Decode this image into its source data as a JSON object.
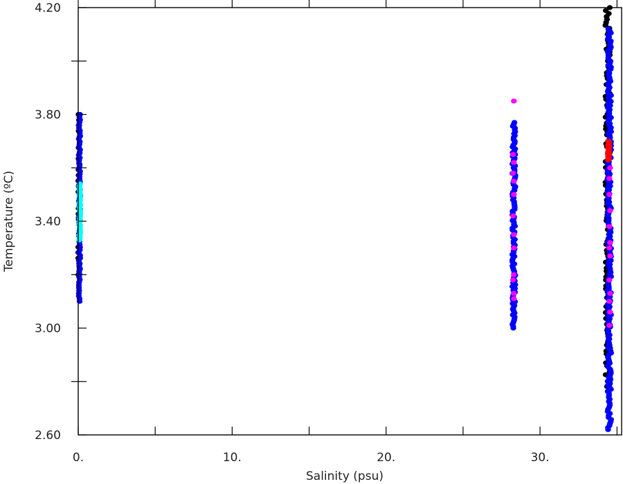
{
  "chart_data": {
    "type": "scatter",
    "xlabel": "Salinity (psu)",
    "ylabel": "Temperature (ºC)",
    "xlim": [
      0,
      35.3
    ],
    "ylim": [
      2.6,
      4.2
    ],
    "x_ticks": [
      0,
      5,
      10,
      15,
      20,
      25,
      30,
      35
    ],
    "x_tick_labels": [
      "0.",
      "",
      "10.",
      "",
      "20.",
      "",
      "30.",
      ""
    ],
    "y_ticks": [
      2.6,
      2.8,
      3.0,
      3.2,
      3.4,
      3.6,
      3.8,
      4.0,
      4.2
    ],
    "y_tick_labels": [
      "2.60",
      "",
      "3.00",
      "",
      "3.40",
      "",
      "3.80",
      "",
      "4.20"
    ],
    "grid": false,
    "legend": "none",
    "series": [
      {
        "color": "#000000",
        "clusters": [
          {
            "x": 0.05,
            "xspread": 0.05,
            "y": [
              3.2,
              3.8
            ],
            "count": 30
          },
          {
            "x": 34.4,
            "xspread": 0.15,
            "y": [
              2.77,
              4.2
            ],
            "count": 130
          }
        ]
      },
      {
        "color": "#0000ff",
        "clusters": [
          {
            "x": 0.08,
            "xspread": 0.05,
            "y": [
              3.1,
              3.8
            ],
            "count": 70
          },
          {
            "x": 28.3,
            "xspread": 0.1,
            "y": [
              3.0,
              3.77
            ],
            "count": 110
          },
          {
            "x": 34.5,
            "xspread": 0.12,
            "y": [
              2.62,
              4.12
            ],
            "count": 200
          }
        ]
      },
      {
        "color": "#00ffff",
        "clusters": [
          {
            "x": 0.1,
            "xspread": 0.03,
            "y": [
              3.33,
              3.54
            ],
            "count": 25
          }
        ]
      },
      {
        "color": "#ff00ff",
        "points": [
          [
            28.3,
            3.85
          ],
          [
            28.25,
            3.65
          ],
          [
            28.3,
            3.62
          ],
          [
            28.25,
            3.58
          ],
          [
            28.3,
            3.55
          ],
          [
            28.3,
            3.5
          ],
          [
            28.25,
            3.42
          ],
          [
            28.3,
            3.35
          ],
          [
            28.3,
            3.3
          ],
          [
            28.3,
            3.2
          ],
          [
            28.25,
            3.18
          ],
          [
            28.3,
            3.13
          ],
          [
            28.3,
            3.11
          ],
          [
            34.5,
            3.56
          ],
          [
            34.5,
            3.5
          ],
          [
            34.55,
            3.44
          ],
          [
            34.5,
            3.38
          ],
          [
            34.55,
            3.32
          ],
          [
            34.5,
            3.3
          ],
          [
            34.55,
            3.27
          ],
          [
            34.5,
            3.18
          ],
          [
            34.55,
            3.13
          ],
          [
            34.5,
            3.1
          ],
          [
            34.55,
            3.06
          ],
          [
            34.5,
            3.01
          ],
          [
            34.55,
            3.6
          ]
        ]
      },
      {
        "color": "#ff0000",
        "clusters": [
          {
            "x": 34.45,
            "xspread": 0.04,
            "y": [
              3.63,
              3.7
            ],
            "count": 25
          }
        ]
      }
    ]
  }
}
